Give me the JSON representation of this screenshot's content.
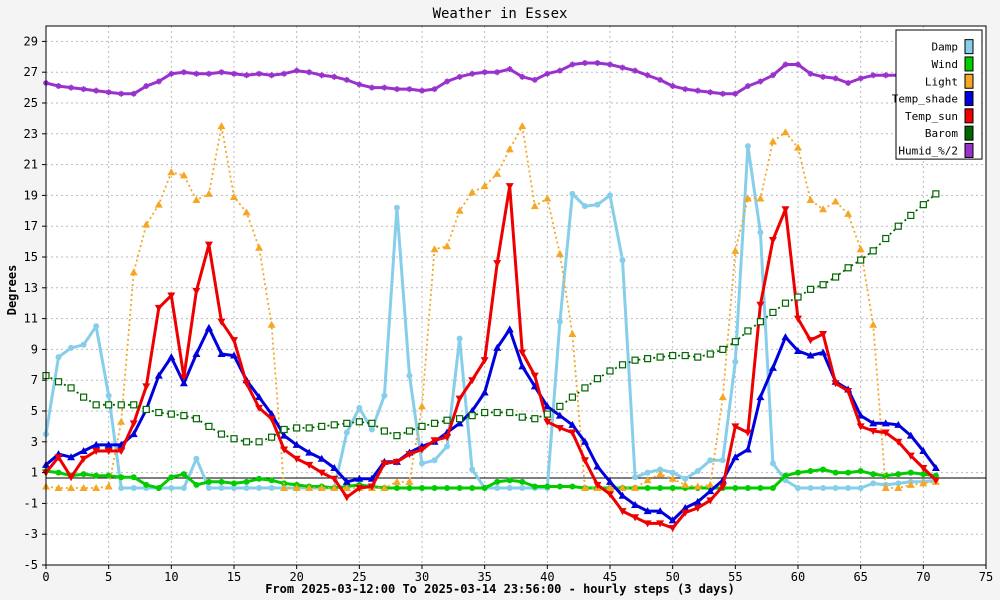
{
  "chart_data": {
    "type": "line",
    "title": "Weather in Essex",
    "xlabel": "From 2025-03-12:00 To 2025-03-14 23:56:00 - hourly steps (3 days)",
    "ylabel": "Degrees",
    "xlim": [
      0,
      75
    ],
    "ylim": [
      -5,
      30
    ],
    "xticks": [
      0,
      5,
      10,
      15,
      20,
      25,
      30,
      35,
      40,
      45,
      50,
      55,
      60,
      65,
      70,
      75
    ],
    "yticks": [
      -5,
      -3,
      -1,
      1,
      3,
      5,
      7,
      9,
      11,
      13,
      15,
      17,
      19,
      21,
      23,
      25,
      27,
      29
    ],
    "grid": true,
    "legend_position": "top-right",
    "series": [
      {
        "name": "Damp",
        "color": "#87ceeb",
        "style": "solid",
        "marker": "circle",
        "values": [
          3.5,
          8.5,
          9.1,
          9.3,
          10.5,
          6.0,
          0.0,
          0.0,
          0.0,
          0.0,
          0.0,
          0.0,
          1.9,
          0.0,
          0.0,
          0.0,
          0.0,
          0.0,
          0.0,
          0.0,
          0.0,
          0.0,
          0.0,
          0.0,
          3.6,
          5.2,
          3.8,
          6.0,
          18.2,
          7.3,
          1.6,
          1.8,
          2.7,
          9.7,
          1.2,
          0.0,
          0.0,
          0.0,
          0.0,
          0.0,
          0.0,
          10.8,
          19.1,
          18.3,
          18.4,
          19.0,
          14.8,
          0.7,
          1.0,
          1.2,
          1.0,
          0.6,
          1.1,
          1.8,
          1.8,
          8.2,
          22.2,
          16.6,
          1.6,
          0.5,
          0.0,
          0.0,
          0.0,
          0.0,
          0.0,
          0.0,
          0.3,
          0.2,
          0.3,
          0.4,
          0.4,
          0.5
        ]
      },
      {
        "name": "Wind",
        "color": "#00cc00",
        "style": "solid",
        "marker": "circle",
        "values": [
          1.1,
          1.0,
          0.8,
          0.9,
          0.8,
          0.8,
          0.7,
          0.7,
          0.2,
          0.0,
          0.7,
          0.9,
          0.2,
          0.4,
          0.4,
          0.3,
          0.4,
          0.6,
          0.5,
          0.3,
          0.2,
          0.1,
          0.1,
          0.0,
          0.1,
          0.2,
          0.1,
          0.0,
          0.0,
          0.0,
          0.0,
          0.0,
          0.0,
          0.0,
          0.0,
          0.0,
          0.4,
          0.5,
          0.4,
          0.1,
          0.1,
          0.1,
          0.1,
          0.0,
          0.0,
          0.0,
          0.0,
          0.0,
          0.0,
          0.0,
          0.0,
          0.0,
          0.0,
          0.0,
          0.0,
          0.0,
          0.0,
          0.0,
          0.0,
          0.8,
          1.0,
          1.1,
          1.2,
          1.0,
          1.0,
          1.1,
          0.9,
          0.8,
          0.9,
          1.0,
          0.9,
          0.8
        ]
      },
      {
        "name": "Light",
        "color": "#f5a623",
        "style": "dotted",
        "marker": "triangle",
        "values": [
          0.1,
          0.0,
          0.0,
          0.0,
          0.0,
          0.1,
          4.3,
          14.0,
          17.1,
          18.4,
          20.5,
          20.3,
          18.7,
          19.1,
          23.5,
          18.9,
          17.9,
          15.6,
          10.6,
          0.0,
          0.0,
          0.0,
          0.0,
          0.0,
          0.0,
          0.0,
          0.0,
          0.0,
          0.4,
          0.4,
          5.3,
          15.5,
          15.7,
          18.0,
          19.2,
          19.6,
          20.4,
          22.0,
          23.5,
          18.3,
          18.8,
          15.2,
          10.0,
          0.0,
          0.0,
          0.0,
          0.0,
          0.0,
          0.5,
          0.9,
          0.6,
          0.2,
          0.1,
          0.2,
          5.9,
          15.4,
          18.8,
          18.8,
          22.5,
          23.1,
          22.1,
          18.7,
          18.1,
          18.6,
          17.8,
          15.5,
          10.6,
          0.0,
          0.0,
          0.2,
          0.3,
          0.4
        ]
      },
      {
        "name": "Temp_shade",
        "color": "#0000dd",
        "style": "solid",
        "marker": "triangle",
        "values": [
          1.5,
          2.2,
          2.0,
          2.4,
          2.8,
          2.8,
          2.8,
          3.5,
          5.1,
          7.3,
          8.5,
          6.8,
          8.7,
          10.4,
          8.7,
          8.6,
          7.0,
          5.9,
          4.8,
          3.4,
          2.8,
          2.3,
          1.9,
          1.3,
          0.4,
          0.6,
          0.6,
          1.7,
          1.7,
          2.3,
          2.7,
          3.0,
          3.6,
          4.2,
          5.0,
          6.2,
          9.1,
          10.3,
          7.9,
          6.6,
          5.3,
          4.7,
          4.1,
          3.0,
          1.4,
          0.4,
          -0.5,
          -1.1,
          -1.5,
          -1.5,
          -2.1,
          -1.3,
          -0.9,
          -0.2,
          0.5,
          2.0,
          2.5,
          5.9,
          7.8,
          9.8,
          8.9,
          8.6,
          8.8,
          6.9,
          6.4,
          4.7,
          4.2,
          4.2,
          4.1,
          3.4,
          2.4,
          1.3
        ]
      },
      {
        "name": "Temp_sun",
        "color": "#ee0000",
        "style": "solid",
        "marker": "triangle-down",
        "values": [
          1.0,
          2.0,
          0.7,
          1.9,
          2.4,
          2.4,
          2.4,
          4.2,
          6.6,
          11.7,
          12.5,
          7.2,
          12.8,
          15.8,
          10.8,
          9.6,
          6.8,
          5.2,
          4.5,
          2.5,
          1.9,
          1.5,
          1.0,
          0.6,
          -0.6,
          0.0,
          0.1,
          1.6,
          1.7,
          2.2,
          2.5,
          3.1,
          3.3,
          5.8,
          7.0,
          8.3,
          14.6,
          19.6,
          8.8,
          7.3,
          4.3,
          3.9,
          3.6,
          1.8,
          0.2,
          -0.4,
          -1.5,
          -1.9,
          -2.3,
          -2.3,
          -2.6,
          -1.6,
          -1.3,
          -0.8,
          0.1,
          4.0,
          3.6,
          11.9,
          16.1,
          18.1,
          11.0,
          9.6,
          10.0,
          6.8,
          6.3,
          4.0,
          3.7,
          3.6,
          3.0,
          2.1,
          1.3,
          0.5
        ]
      },
      {
        "name": "Barom",
        "color": "#006600",
        "style": "dotted",
        "marker": "square",
        "values": [
          7.3,
          6.9,
          6.5,
          5.9,
          5.4,
          5.4,
          5.4,
          5.4,
          5.1,
          4.9,
          4.8,
          4.7,
          4.5,
          4.0,
          3.5,
          3.2,
          3.0,
          3.0,
          3.3,
          3.8,
          3.9,
          3.9,
          4.0,
          4.1,
          4.2,
          4.3,
          4.2,
          3.7,
          3.4,
          3.7,
          4.0,
          4.2,
          4.4,
          4.5,
          4.7,
          4.9,
          4.9,
          4.9,
          4.6,
          4.5,
          4.8,
          5.3,
          5.9,
          6.5,
          7.1,
          7.6,
          8.0,
          8.3,
          8.4,
          8.5,
          8.6,
          8.6,
          8.5,
          8.7,
          9.0,
          9.5,
          10.2,
          10.8,
          11.4,
          12.0,
          12.4,
          12.9,
          13.2,
          13.7,
          14.3,
          14.8,
          15.4,
          16.2,
          17.0,
          17.7,
          18.4,
          19.1
        ]
      },
      {
        "name": "Humid_%/2",
        "color": "#9932cc",
        "style": "solid",
        "marker": "star",
        "values": [
          26.3,
          26.1,
          26.0,
          25.9,
          25.8,
          25.7,
          25.6,
          25.6,
          26.1,
          26.4,
          26.9,
          27.0,
          26.9,
          26.9,
          27.0,
          26.9,
          26.8,
          26.9,
          26.8,
          26.9,
          27.1,
          27.0,
          26.8,
          26.7,
          26.5,
          26.2,
          26.0,
          26.0,
          25.9,
          25.9,
          25.8,
          25.9,
          26.4,
          26.7,
          26.9,
          27.0,
          27.0,
          27.2,
          26.7,
          26.5,
          26.9,
          27.1,
          27.5,
          27.6,
          27.6,
          27.5,
          27.3,
          27.1,
          26.8,
          26.5,
          26.1,
          25.9,
          25.8,
          25.7,
          25.6,
          25.6,
          26.1,
          26.4,
          26.8,
          27.5,
          27.5,
          26.9,
          26.7,
          26.6,
          26.3,
          26.6,
          26.8,
          26.8,
          26.8,
          26.7,
          26.6,
          26.5
        ]
      }
    ]
  }
}
